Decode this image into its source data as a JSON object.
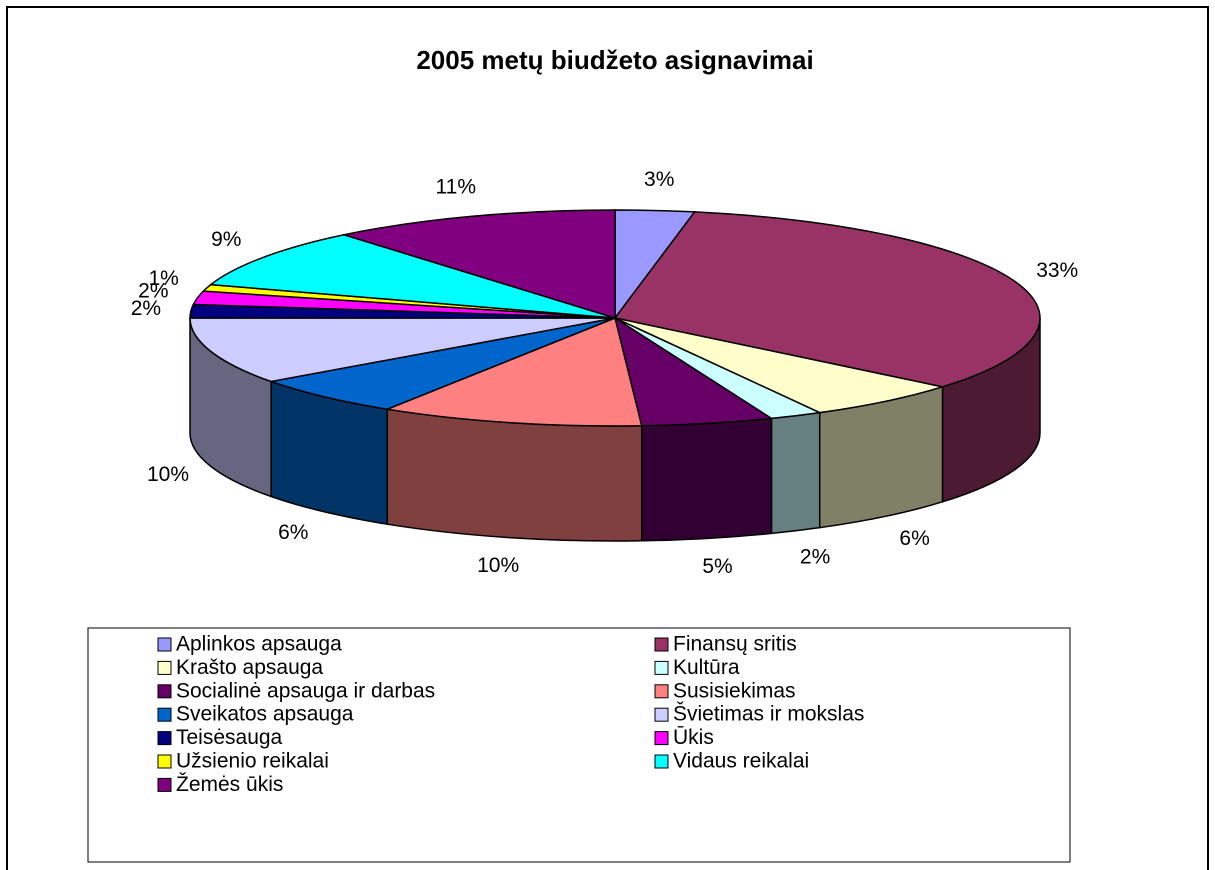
{
  "chart_data": {
    "type": "pie",
    "title": "2005 metų biudžeto asignavimai",
    "categories": [
      "Aplinkos apsauga",
      "Finansų sritis",
      "Krašto apsauga",
      "Kultūra",
      "Socialinė apsauga ir darbas",
      "Susisiekimas",
      "Sveikatos apsauga",
      "Švietimas ir mokslas",
      "Teisėsauga",
      "Ūkis",
      "Užsienio reikalai",
      "Vidaus reikalai",
      "Žemės ūkis"
    ],
    "values": [
      3,
      33,
      6,
      2,
      5,
      10,
      6,
      10,
      2,
      2,
      1,
      9,
      11
    ],
    "value_labels": [
      "3%",
      "33%",
      "6%",
      "2%",
      "5%",
      "10%",
      "6%",
      "10%",
      "2%",
      "2%",
      "1%",
      "9%",
      "11%"
    ],
    "colors": [
      "#9999ff",
      "#993366",
      "#ffffcc",
      "#ccffff",
      "#660066",
      "#ff8080",
      "#0066cc",
      "#ccccff",
      "#000080",
      "#ff00ff",
      "#ffff00",
      "#00ffff",
      "#800080"
    ],
    "legend": "bottom"
  }
}
